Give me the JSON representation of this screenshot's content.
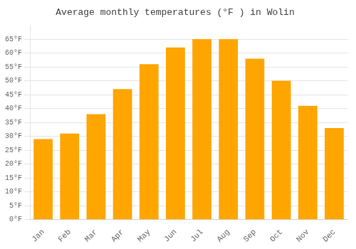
{
  "chart_data": {
    "type": "bar",
    "title": "Average monthly temperatures (°F ) in Wolin",
    "categories": [
      "Jan",
      "Feb",
      "Mar",
      "Apr",
      "May",
      "Jun",
      "Jul",
      "Aug",
      "Sep",
      "Oct",
      "Nov",
      "Dec"
    ],
    "values": [
      29,
      31,
      38,
      47,
      56,
      62,
      65,
      65,
      58,
      50,
      41,
      33
    ],
    "color": "#FFA500",
    "ylim": [
      0,
      70
    ],
    "yticks": [
      {
        "value": 0,
        "label": "0°F"
      },
      {
        "value": 5,
        "label": "5°F"
      },
      {
        "value": 10,
        "label": "10°F"
      },
      {
        "value": 15,
        "label": "15°F"
      },
      {
        "value": 20,
        "label": "20°F"
      },
      {
        "value": 25,
        "label": "25°F"
      },
      {
        "value": 30,
        "label": "30°F"
      },
      {
        "value": 35,
        "label": "35°F"
      },
      {
        "value": 40,
        "label": "40°F"
      },
      {
        "value": 45,
        "label": "45°F"
      },
      {
        "value": 50,
        "label": "50°F"
      },
      {
        "value": 55,
        "label": "55°F"
      },
      {
        "value": 60,
        "label": "60°F"
      },
      {
        "value": 65,
        "label": "65°F"
      }
    ],
    "grid": true
  }
}
